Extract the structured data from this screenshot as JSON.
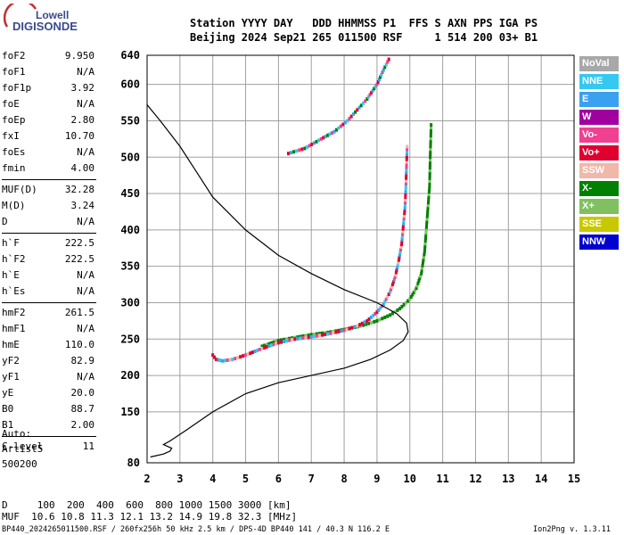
{
  "logo": {
    "line1": "Lowell",
    "line2": "DIGISONDE"
  },
  "header": {
    "row1": "Station YYYY DAY   DDD HHMMSS P1  FFS S AXN PPS IGA PS",
    "row2": "Beijing 2024 Sep21 265 011500 RSF     1 514 200 03+ B1"
  },
  "params_group1": [
    {
      "k": "foF2",
      "v": "9.950"
    },
    {
      "k": "foF1",
      "v": "N/A"
    },
    {
      "k": "foF1p",
      "v": "3.92"
    },
    {
      "k": "foE",
      "v": "N/A"
    },
    {
      "k": "foEp",
      "v": "2.80"
    },
    {
      "k": "fxI",
      "v": "10.70"
    },
    {
      "k": "foEs",
      "v": "N/A"
    },
    {
      "k": "fmin",
      "v": "4.00"
    }
  ],
  "params_group2": [
    {
      "k": "MUF(D)",
      "v": "32.28"
    },
    {
      "k": "M(D)",
      "v": "3.24"
    },
    {
      "k": "D",
      "v": "N/A"
    }
  ],
  "params_group3": [
    {
      "k": "h`F",
      "v": "222.5"
    },
    {
      "k": "h`F2",
      "v": "222.5"
    },
    {
      "k": "h`E",
      "v": "N/A"
    },
    {
      "k": "h`Es",
      "v": "N/A"
    }
  ],
  "params_group4": [
    {
      "k": "hmF2",
      "v": "261.5"
    },
    {
      "k": "hmF1",
      "v": "N/A"
    },
    {
      "k": "hmE",
      "v": "110.0"
    },
    {
      "k": "yF2",
      "v": "82.9"
    },
    {
      "k": "yF1",
      "v": "N/A"
    },
    {
      "k": "yE",
      "v": "20.0"
    },
    {
      "k": "B0",
      "v": "88.7"
    },
    {
      "k": "B1",
      "v": "2.00"
    }
  ],
  "params_group5": [
    {
      "k": "C-level",
      "v": "11"
    }
  ],
  "auto": {
    "line1": "Auto:",
    "line2": "Artist5",
    "line3": "500200"
  },
  "legend": [
    {
      "label": "NoVal",
      "color": "#a8a8a8"
    },
    {
      "label": "NNE",
      "color": "#35c8f0"
    },
    {
      "label": "E",
      "color": "#3aa0f0"
    },
    {
      "label": "W",
      "color": "#a000a0"
    },
    {
      "label": "Vo-",
      "color": "#f04090"
    },
    {
      "label": "Vo+",
      "color": "#e00030"
    },
    {
      "label": "SSW",
      "color": "#f0b8a8"
    },
    {
      "label": "X-",
      "color": "#008000"
    },
    {
      "label": "X+",
      "color": "#80c060"
    },
    {
      "label": "SSE",
      "color": "#c8c800"
    },
    {
      "label": "NNW",
      "color": "#0000d0"
    }
  ],
  "footer": {
    "d_line": "D     100  200  400  600  800 1000 1500 3000 [km]",
    "muf_line": "MUF  10.6 10.8 11.3 12.1 13.2 14.9 19.8 32.3 [MHz]",
    "file_line": "BP440_2024265011500.RSF / 260fx256h 50 kHz 2.5 km / DPS-4D BP440 141 / 40.3 N 116.2 E",
    "version": "Ion2Png v. 1.3.11"
  },
  "chart_data": {
    "type": "scatter",
    "title": "",
    "xlabel": "",
    "ylabel": "",
    "xlim": [
      2,
      15
    ],
    "ylim": [
      80,
      640
    ],
    "xticks": [
      2,
      3,
      4,
      5,
      6,
      7,
      8,
      9,
      10,
      11,
      12,
      13,
      14,
      15
    ],
    "yticks": [
      80,
      150,
      200,
      250,
      300,
      350,
      400,
      450,
      500,
      550,
      600,
      640
    ],
    "grid": true,
    "o_trace": [
      [
        4.0,
        228
      ],
      [
        4.1,
        222
      ],
      [
        4.3,
        220
      ],
      [
        4.6,
        222
      ],
      [
        5.0,
        228
      ],
      [
        5.5,
        237
      ],
      [
        6.0,
        245
      ],
      [
        6.5,
        250
      ],
      [
        7.0,
        253
      ],
      [
        7.5,
        257
      ],
      [
        8.0,
        262
      ],
      [
        8.4,
        268
      ],
      [
        8.7,
        275
      ],
      [
        9.0,
        287
      ],
      [
        9.2,
        298
      ],
      [
        9.4,
        315
      ],
      [
        9.55,
        335
      ],
      [
        9.65,
        355
      ],
      [
        9.75,
        380
      ],
      [
        9.8,
        405
      ],
      [
        9.85,
        430
      ],
      [
        9.88,
        460
      ],
      [
        9.9,
        490
      ],
      [
        9.92,
        518
      ]
    ],
    "x_trace": [
      [
        5.5,
        240
      ],
      [
        6.0,
        248
      ],
      [
        6.5,
        252
      ],
      [
        7.0,
        256
      ],
      [
        7.5,
        259
      ],
      [
        8.0,
        263
      ],
      [
        8.5,
        268
      ],
      [
        9.0,
        275
      ],
      [
        9.4,
        283
      ],
      [
        9.7,
        292
      ],
      [
        10.0,
        305
      ],
      [
        10.2,
        320
      ],
      [
        10.35,
        340
      ],
      [
        10.45,
        370
      ],
      [
        10.5,
        400
      ],
      [
        10.55,
        430
      ],
      [
        10.6,
        460
      ],
      [
        10.62,
        500
      ],
      [
        10.65,
        548
      ]
    ],
    "multihop_trace": [
      [
        6.3,
        505
      ],
      [
        6.8,
        512
      ],
      [
        7.3,
        525
      ],
      [
        7.7,
        535
      ],
      [
        8.1,
        550
      ],
      [
        8.4,
        565
      ],
      [
        8.7,
        580
      ],
      [
        9.0,
        600
      ],
      [
        9.2,
        620
      ],
      [
        9.4,
        638
      ]
    ],
    "profile": [
      [
        2.1,
        88
      ],
      [
        2.5,
        92
      ],
      [
        2.7,
        96
      ],
      [
        2.75,
        100
      ],
      [
        2.5,
        105
      ],
      [
        2.7,
        110
      ],
      [
        3.2,
        125
      ],
      [
        4.0,
        150
      ],
      [
        5.0,
        175
      ],
      [
        6.0,
        190
      ],
      [
        7.0,
        200
      ],
      [
        8.0,
        210
      ],
      [
        8.8,
        222
      ],
      [
        9.4,
        235
      ],
      [
        9.8,
        248
      ],
      [
        9.95,
        260
      ],
      [
        9.9,
        272
      ],
      [
        9.6,
        285
      ],
      [
        9.0,
        300
      ],
      [
        8.0,
        318
      ],
      [
        7.0,
        340
      ],
      [
        6.0,
        365
      ],
      [
        5.0,
        400
      ],
      [
        4.0,
        445
      ],
      [
        3.5,
        480
      ],
      [
        3.0,
        515
      ],
      [
        2.4,
        550
      ],
      [
        2.0,
        572
      ]
    ]
  }
}
